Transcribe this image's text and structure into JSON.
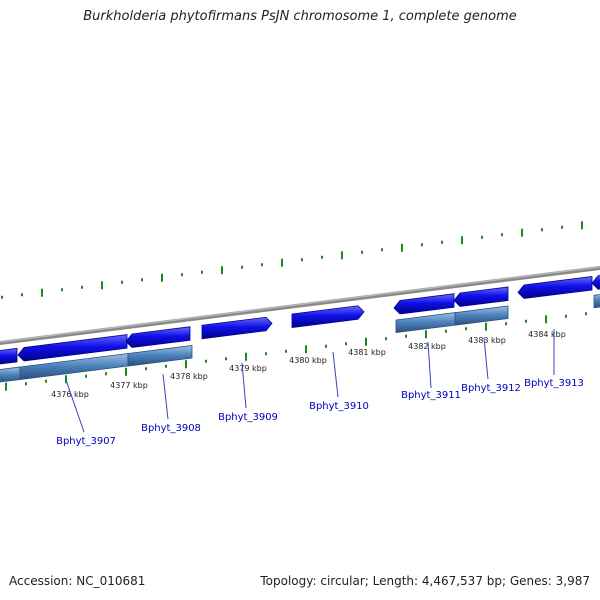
{
  "title": "Burkholderia phytofirmans PsJN chromosome 1, complete genome",
  "footer": {
    "accession": "Accession: NC_010681",
    "summary": "Topology: circular; Length: 4,467,537 bp; Genes: 3,987"
  },
  "colors": {
    "gene_forward": "#1010e8",
    "gene_forward_dark": "#00008a",
    "feature_lower": "#4a7fb8",
    "backbone": "#888888",
    "tick": "#1a8a1a",
    "label_line": "#3344bb",
    "label_text": "#0000bb"
  },
  "scale": {
    "unit": "kbp",
    "labeled_ticks_kbp": [
      4376,
      4377,
      4378,
      4379,
      4380,
      4381,
      4382,
      4383,
      4384
    ],
    "tick_labels": [
      "4376 kbp",
      "4377 kbp",
      "4378 kbp",
      "4379 kbp",
      "4380 kbp",
      "4381 kbp",
      "4382 kbp",
      "4383 kbp",
      "4384 kbp"
    ]
  },
  "genes": [
    {
      "locus": "Bphyt_3907"
    },
    {
      "locus": "Bphyt_3908"
    },
    {
      "locus": "Bphyt_3909"
    },
    {
      "locus": "Bphyt_3910"
    },
    {
      "locus": "Bphyt_3911"
    },
    {
      "locus": "Bphyt_3912"
    },
    {
      "locus": "Bphyt_3913"
    }
  ]
}
